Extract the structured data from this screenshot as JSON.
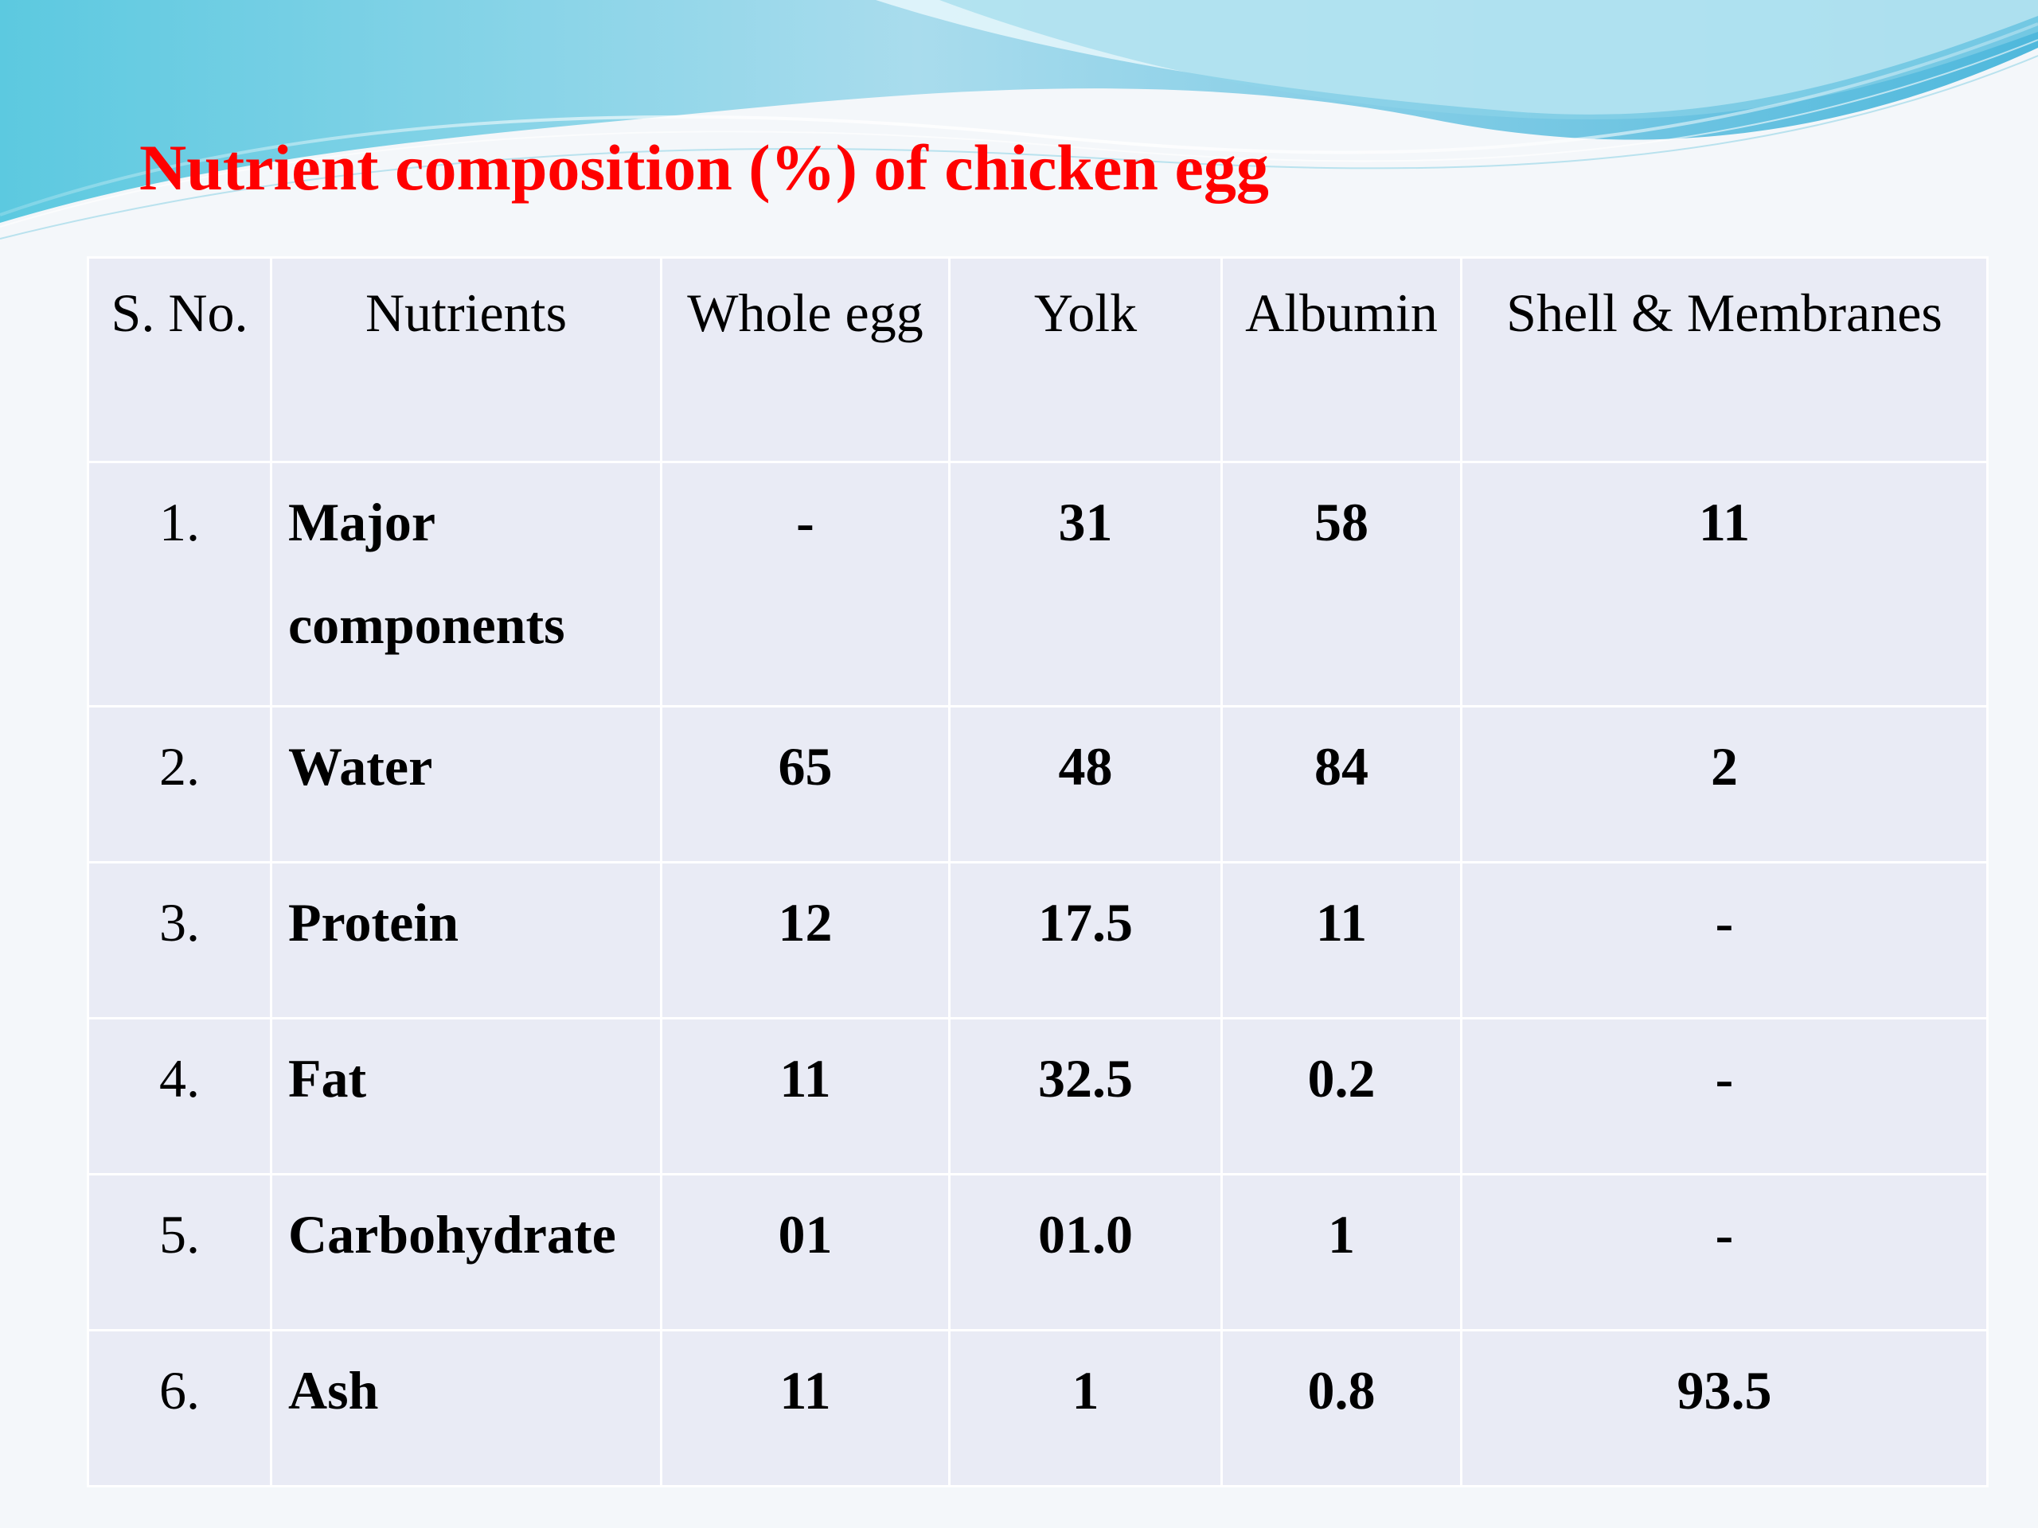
{
  "slide": {
    "title": "Nutrient composition (%) of chicken egg"
  },
  "table": {
    "headers": [
      "S. No.",
      "Nutrients",
      "Whole egg",
      "Yolk",
      "Albumin",
      "Shell & Membranes"
    ],
    "rows": [
      {
        "sno": "1.",
        "nutrient": "Major components",
        "whole_egg": "-",
        "yolk": "31",
        "albumin": "58",
        "shell": "11"
      },
      {
        "sno": "2.",
        "nutrient": "Water",
        "whole_egg": "65",
        "yolk": "48",
        "albumin": "84",
        "shell": "2"
      },
      {
        "sno": "3.",
        "nutrient": "Protein",
        "whole_egg": "12",
        "yolk": "17.5",
        "albumin": "11",
        "shell": "-"
      },
      {
        "sno": "4.",
        "nutrient": "Fat",
        "whole_egg": "11",
        "yolk": "32.5",
        "albumin": "0.2",
        "shell": "-"
      },
      {
        "sno": "5.",
        "nutrient": "Carbohydrate",
        "whole_egg": "01",
        "yolk": "01.0",
        "albumin": "1",
        "shell": "-"
      },
      {
        "sno": "6.",
        "nutrient": "Ash",
        "whole_egg": "11",
        "yolk": "1",
        "albumin": "0.8",
        "shell": "93.5"
      }
    ]
  },
  "colors": {
    "title": "#ff0000",
    "cell_background": "#e9ebf5",
    "wave_dark": "#6fc3df",
    "wave_light": "#bfe7f2"
  }
}
